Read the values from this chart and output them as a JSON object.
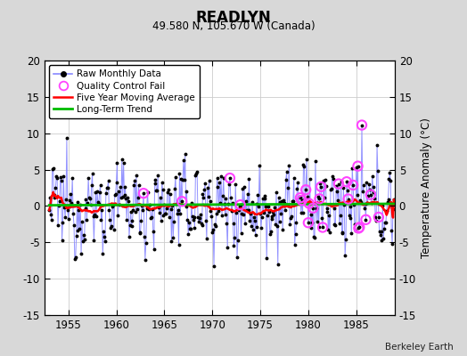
{
  "title": "READLYN",
  "subtitle": "49.580 N, 105.670 W (Canada)",
  "ylabel": "Temperature Anomaly (°C)",
  "watermark": "Berkeley Earth",
  "xlim": [
    1952.5,
    1989.0
  ],
  "ylim": [
    -15,
    20
  ],
  "yticks_left": [
    -15,
    -10,
    -5,
    0,
    5,
    10,
    15,
    20
  ],
  "yticks_right": [
    -15,
    -10,
    -5,
    0,
    5,
    10,
    15,
    20
  ],
  "xticks": [
    1955,
    1960,
    1965,
    1970,
    1975,
    1980,
    1985
  ],
  "bg_color": "#d8d8d8",
  "plot_bg_color": "#ffffff",
  "raw_line_color": "#8888ff",
  "raw_marker_color": "#000000",
  "moving_avg_color": "#ff0000",
  "trend_color": "#00bb00",
  "qc_fail_color": "#ff44ff",
  "n_months": 432,
  "start_year": 1953.0,
  "noise_scale": 2.8,
  "autocorr": 0.25
}
